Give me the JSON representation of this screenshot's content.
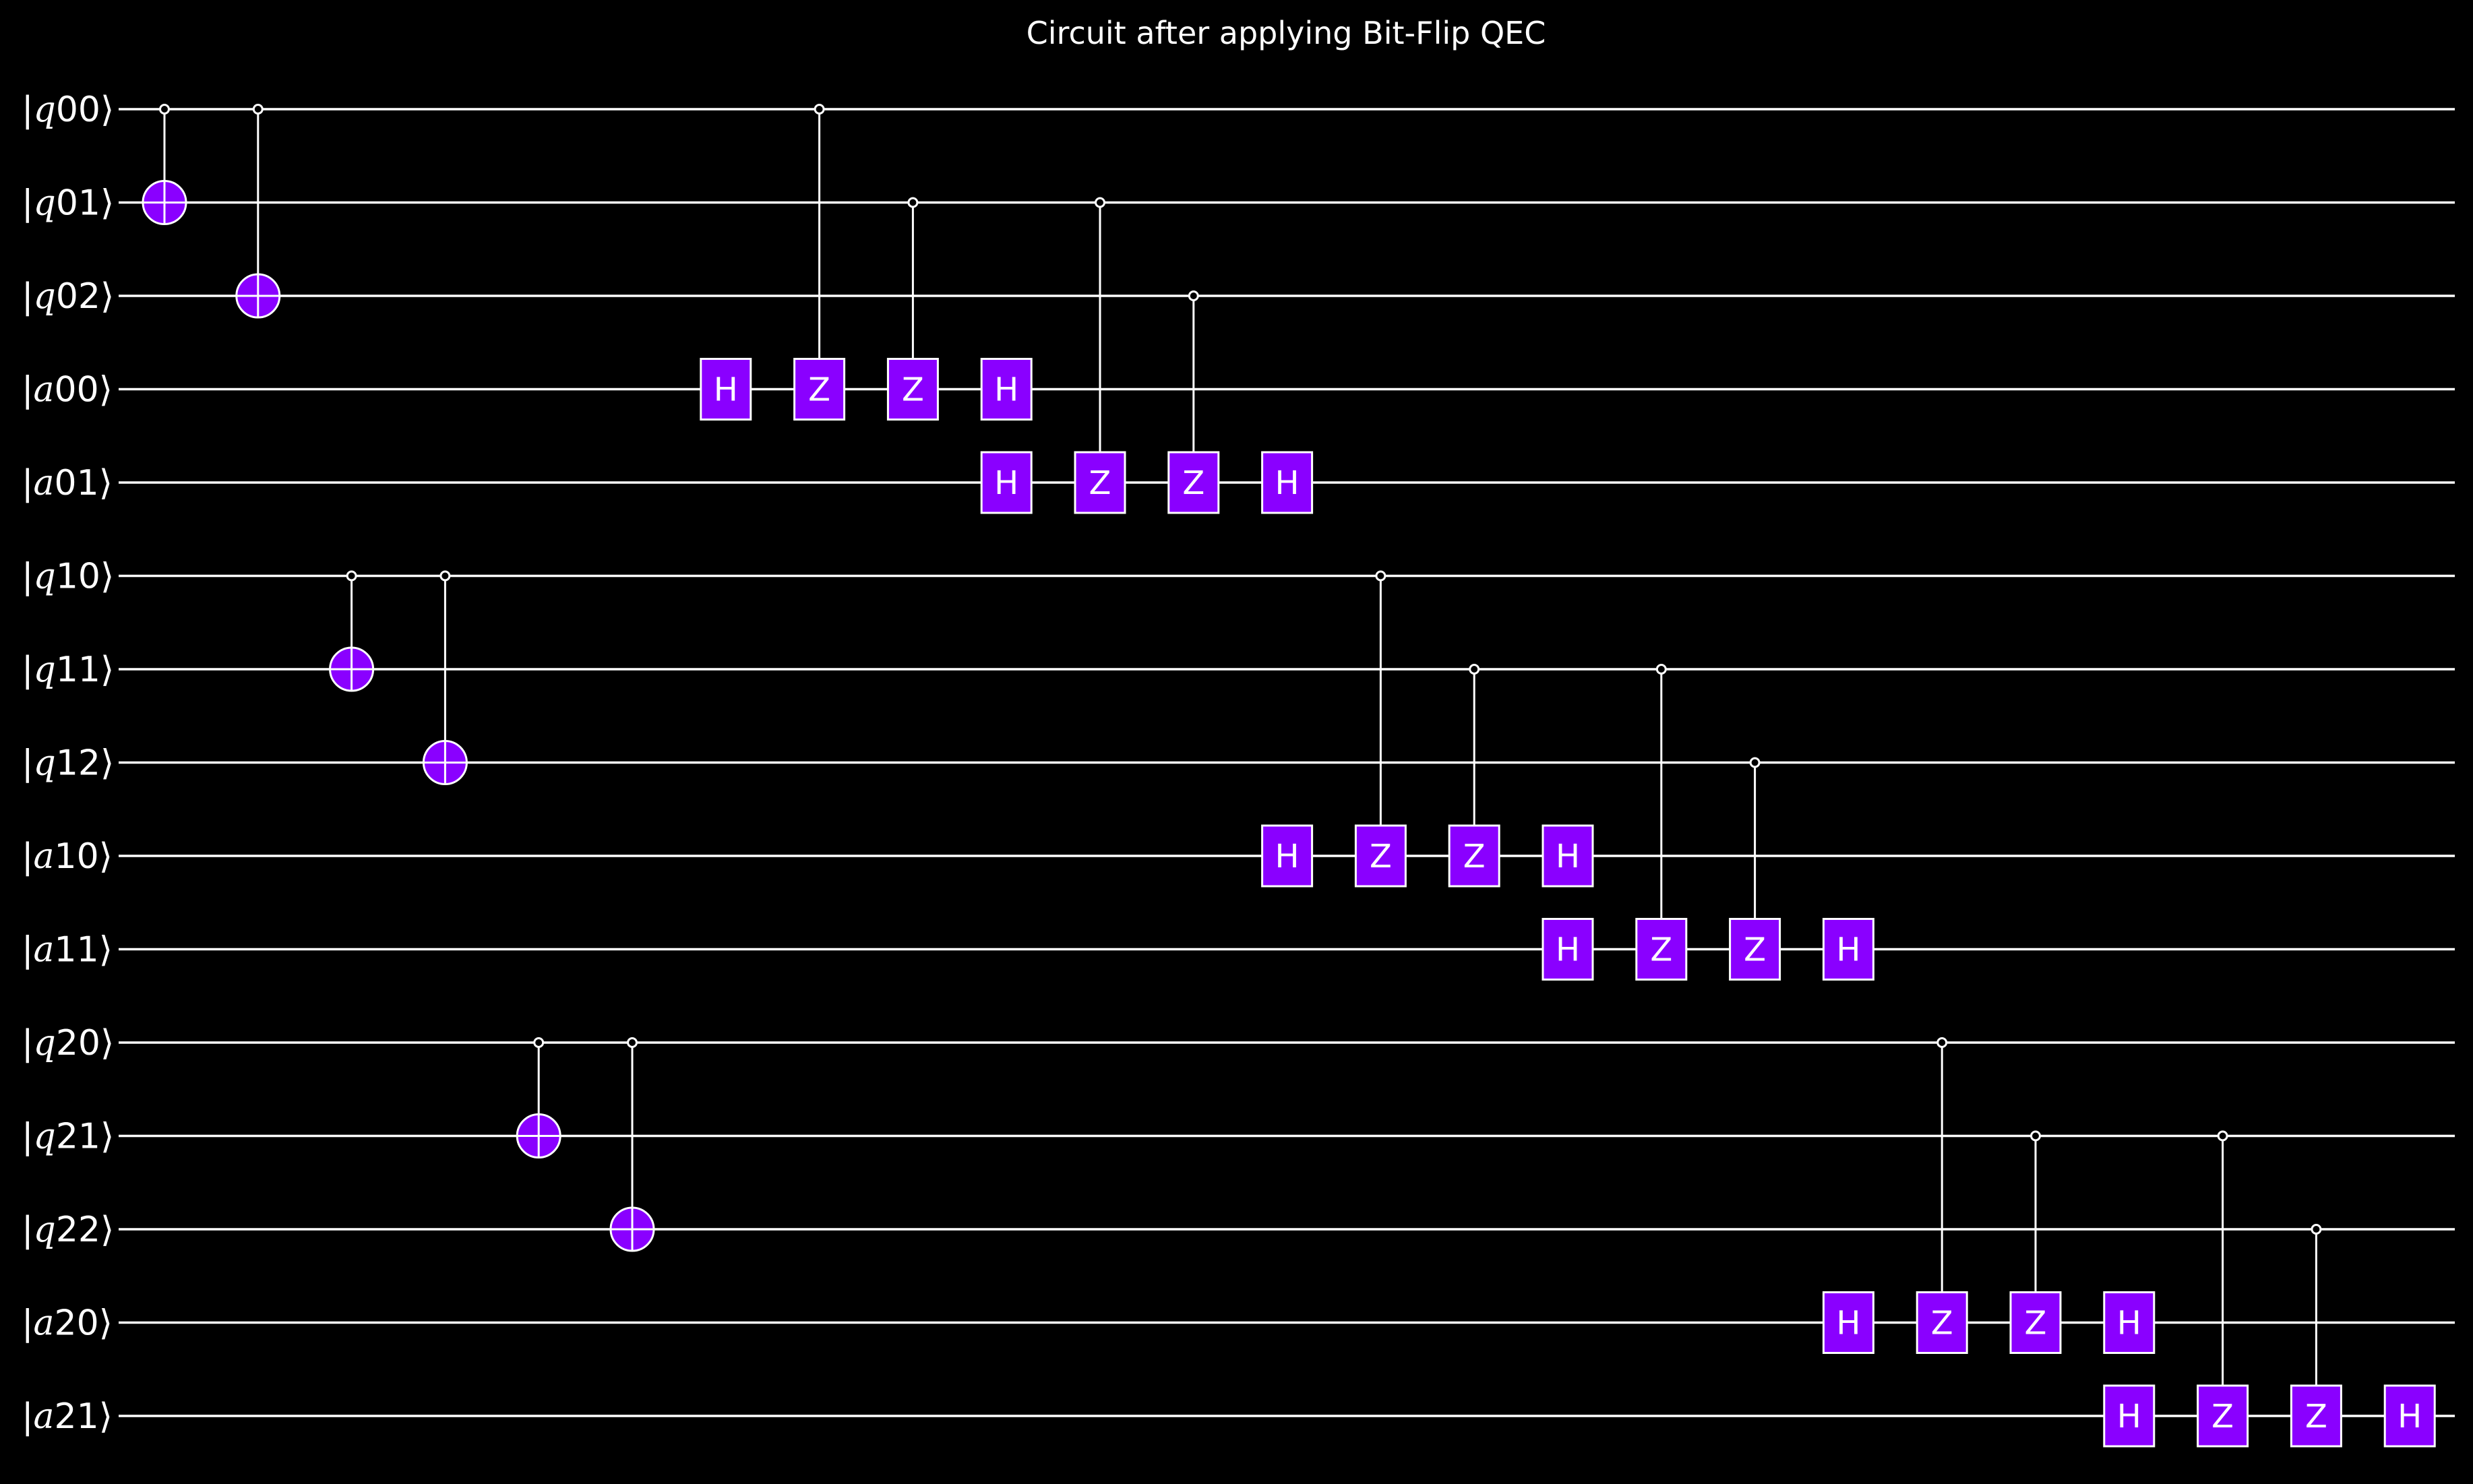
{
  "title": "Circuit after applying Bit-Flip QEC",
  "colors": {
    "background": "#000000",
    "wire": "#ffffff",
    "gate_fill": "#8A00FF",
    "text": "#ffffff"
  },
  "qubits": [
    {
      "var": "q",
      "index": "00"
    },
    {
      "var": "q",
      "index": "01"
    },
    {
      "var": "q",
      "index": "02"
    },
    {
      "var": "a",
      "index": "00"
    },
    {
      "var": "a",
      "index": "01"
    },
    {
      "var": "q",
      "index": "10"
    },
    {
      "var": "q",
      "index": "11"
    },
    {
      "var": "q",
      "index": "12"
    },
    {
      "var": "a",
      "index": "10"
    },
    {
      "var": "a",
      "index": "11"
    },
    {
      "var": "q",
      "index": "20"
    },
    {
      "var": "q",
      "index": "21"
    },
    {
      "var": "q",
      "index": "22"
    },
    {
      "var": "a",
      "index": "20"
    },
    {
      "var": "a",
      "index": "21"
    }
  ],
  "operations": [
    {
      "type": "cx",
      "column": 0,
      "control": 0,
      "target": 1
    },
    {
      "type": "cx",
      "column": 1,
      "control": 0,
      "target": 2
    },
    {
      "type": "cx",
      "column": 2,
      "control": 5,
      "target": 6
    },
    {
      "type": "cx",
      "column": 3,
      "control": 5,
      "target": 7
    },
    {
      "type": "cx",
      "column": 4,
      "control": 10,
      "target": 11
    },
    {
      "type": "cx",
      "column": 5,
      "control": 10,
      "target": 12
    },
    {
      "type": "h",
      "column": 6,
      "target": 3,
      "label": "H"
    },
    {
      "type": "cz",
      "column": 7,
      "control": 0,
      "target": 3,
      "label": "Z"
    },
    {
      "type": "cz",
      "column": 8,
      "control": 1,
      "target": 3,
      "label": "Z"
    },
    {
      "type": "h",
      "column": 9,
      "target": 3,
      "label": "H"
    },
    {
      "type": "h",
      "column": 9,
      "target": 4,
      "label": "H"
    },
    {
      "type": "cz",
      "column": 10,
      "control": 1,
      "target": 4,
      "label": "Z"
    },
    {
      "type": "cz",
      "column": 11,
      "control": 2,
      "target": 4,
      "label": "Z"
    },
    {
      "type": "h",
      "column": 12,
      "target": 4,
      "label": "H"
    },
    {
      "type": "h",
      "column": 12,
      "target": 8,
      "label": "H"
    },
    {
      "type": "cz",
      "column": 13,
      "control": 5,
      "target": 8,
      "label": "Z"
    },
    {
      "type": "cz",
      "column": 14,
      "control": 6,
      "target": 8,
      "label": "Z"
    },
    {
      "type": "h",
      "column": 15,
      "target": 8,
      "label": "H"
    },
    {
      "type": "h",
      "column": 15,
      "target": 9,
      "label": "H"
    },
    {
      "type": "cz",
      "column": 16,
      "control": 6,
      "target": 9,
      "label": "Z"
    },
    {
      "type": "cz",
      "column": 17,
      "control": 7,
      "target": 9,
      "label": "Z"
    },
    {
      "type": "h",
      "column": 18,
      "target": 9,
      "label": "H"
    },
    {
      "type": "h",
      "column": 18,
      "target": 13,
      "label": "H"
    },
    {
      "type": "cz",
      "column": 19,
      "control": 10,
      "target": 13,
      "label": "Z"
    },
    {
      "type": "cz",
      "column": 20,
      "control": 11,
      "target": 13,
      "label": "Z"
    },
    {
      "type": "h",
      "column": 21,
      "target": 13,
      "label": "H"
    },
    {
      "type": "h",
      "column": 21,
      "target": 14,
      "label": "H"
    },
    {
      "type": "cz",
      "column": 22,
      "control": 11,
      "target": 14,
      "label": "Z"
    },
    {
      "type": "cz",
      "column": 23,
      "control": 12,
      "target": 14,
      "label": "Z"
    },
    {
      "type": "h",
      "column": 24,
      "target": 14,
      "label": "H"
    }
  ]
}
